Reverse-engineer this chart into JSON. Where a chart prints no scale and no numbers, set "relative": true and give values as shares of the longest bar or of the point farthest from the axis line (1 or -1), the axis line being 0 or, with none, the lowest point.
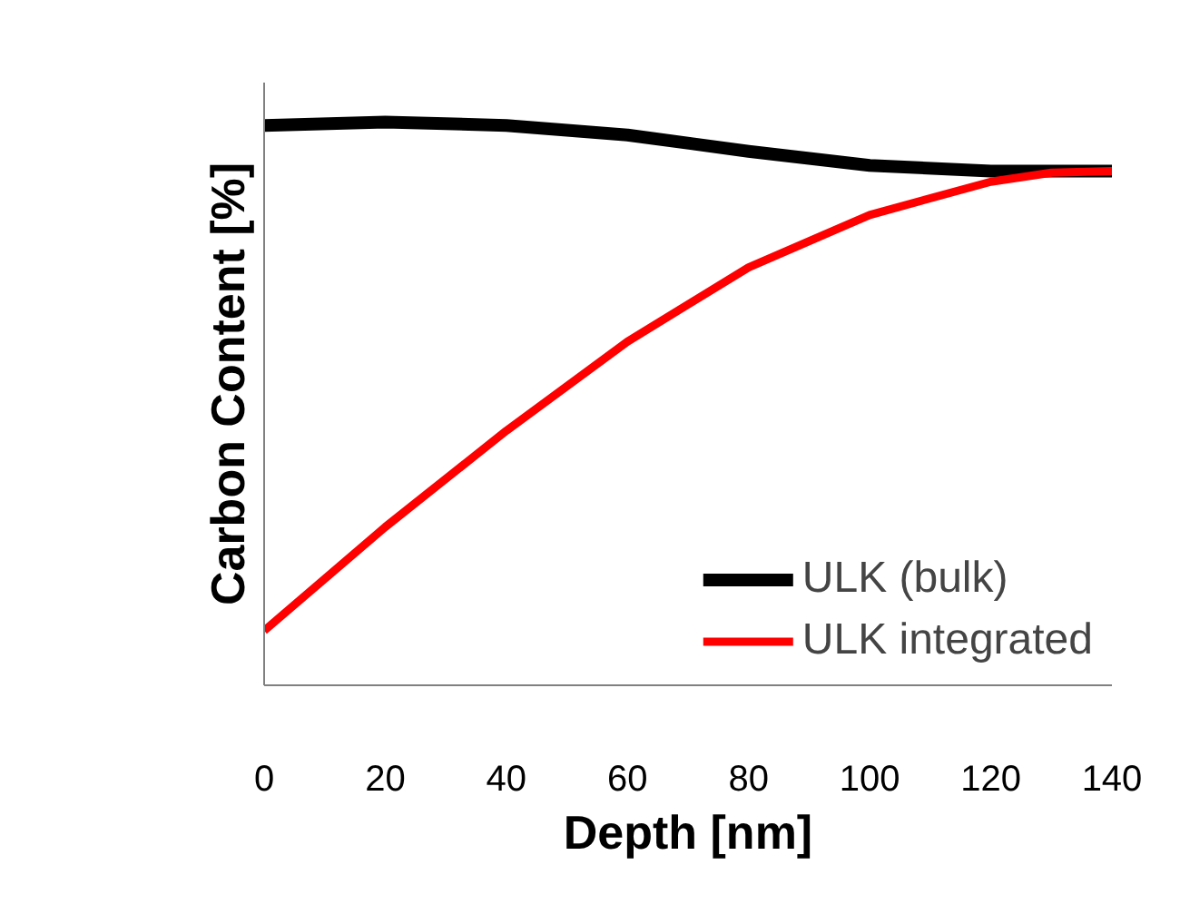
{
  "chart_data": {
    "type": "line",
    "relative": true,
    "xlabel": "Depth [nm]",
    "ylabel": "Carbon Content [%]",
    "x": [
      0,
      20,
      40,
      60,
      80,
      100,
      120,
      130,
      140
    ],
    "xlim": [
      0,
      140
    ],
    "xticks": [
      0,
      20,
      40,
      60,
      80,
      100,
      120,
      140
    ],
    "tick_labels": "x",
    "grid": false,
    "legend": "bottom right",
    "marker": "none",
    "line_style": "solid",
    "series": [
      {
        "name": "ULK (bulk)",
        "color": "#000000",
        "values": [
          0.994,
          1.0,
          0.994,
          0.977,
          0.948,
          0.923,
          0.913,
          0.913,
          0.913
        ]
      },
      {
        "name": "ULK integrated",
        "color": "#ff0000",
        "values": [
          0.097,
          0.281,
          0.452,
          0.61,
          0.742,
          0.835,
          0.894,
          0.91,
          0.913
        ]
      }
    ]
  }
}
